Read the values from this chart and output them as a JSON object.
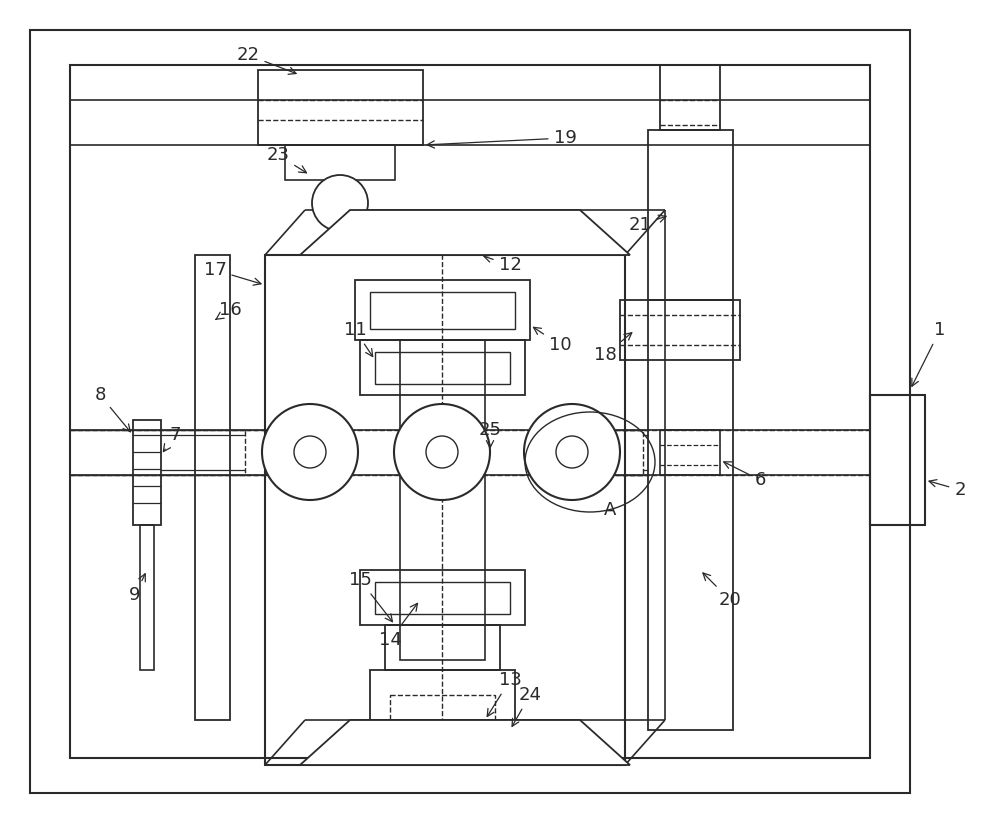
{
  "bg_color": "#ffffff",
  "lc": "#2a2a2a",
  "dc": "#2a2a2a",
  "lw": 1.3,
  "fig_w": 10.0,
  "fig_h": 8.23
}
